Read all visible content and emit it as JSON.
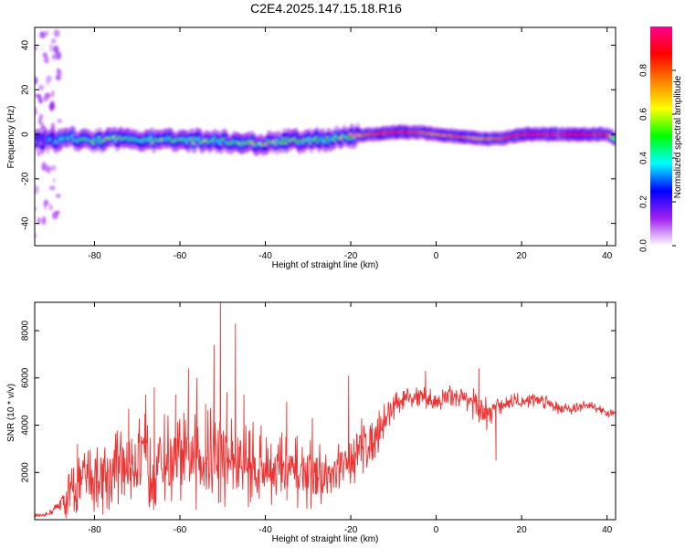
{
  "title": "C2E4.2025.147.15.18.R16",
  "chart_data": [
    {
      "type": "heatmap",
      "xlabel": "Height of straight line (km)",
      "ylabel": "Frequency (Hz)",
      "xlim": [
        -94,
        42
      ],
      "ylim": [
        -50,
        48
      ],
      "x_ticks": [
        -80,
        -60,
        -40,
        -20,
        0,
        20,
        40
      ],
      "y_ticks": [
        -40,
        -20,
        0,
        20,
        40
      ],
      "colorbar": {
        "label": "Normalized spectral amplitude",
        "range": [
          0.0,
          1.0
        ],
        "ticks": [
          0.0,
          0.2,
          0.4,
          0.6,
          0.8
        ],
        "tick_labels": [
          "0.0",
          "0.2",
          "0.4",
          "0.6",
          "0.8"
        ],
        "colormap": [
          "#ffffff",
          "#a020f0",
          "#0000ff",
          "#00ffff",
          "#00ff00",
          "#ffff00",
          "#ff8000",
          "#ff0000",
          "#ff0090"
        ]
      },
      "ridge": {
        "x": [
          -94,
          -90,
          -85,
          -80,
          -75,
          -70,
          -65,
          -60,
          -55,
          -50,
          -45,
          -40,
          -35,
          -30,
          -25,
          -20,
          -15,
          -10,
          -5,
          0,
          5,
          10,
          15,
          20,
          25,
          30,
          35,
          40,
          42
        ],
        "freq": [
          -3,
          -3,
          -2,
          -3,
          -2,
          -2,
          -3,
          -2,
          -3,
          -3,
          -4,
          -4,
          -3,
          -3,
          -2,
          -1,
          0,
          1,
          1,
          0,
          -1,
          -2,
          -2,
          0,
          0,
          0,
          0,
          0,
          -2
        ],
        "amplitude": [
          0.1,
          0.3,
          0.4,
          0.45,
          0.5,
          0.45,
          0.5,
          0.45,
          0.5,
          0.45,
          0.5,
          0.55,
          0.5,
          0.5,
          0.45,
          0.6,
          0.8,
          0.9,
          0.85,
          0.7,
          0.8,
          0.7,
          0.75,
          0.95,
          0.95,
          0.95,
          0.95,
          0.9,
          0.5
        ]
      }
    },
    {
      "type": "line",
      "xlabel": "Height of straight line (km)",
      "ylabel": "SNR (10 * v/v)",
      "xlim": [
        -94,
        42
      ],
      "ylim": [
        0,
        9200
      ],
      "x_ticks": [
        -80,
        -60,
        -40,
        -20,
        0,
        20,
        40
      ],
      "y_ticks": [
        2000,
        4000,
        6000,
        8000
      ],
      "color": "#ee3333",
      "x": [
        -94,
        -92,
        -90,
        -88,
        -86,
        -84,
        -82,
        -80,
        -78,
        -76,
        -74,
        -72,
        -70,
        -68,
        -66,
        -64,
        -62,
        -60,
        -58,
        -56,
        -54,
        -52,
        -50,
        -48,
        -46,
        -44,
        -42,
        -40,
        -38,
        -36,
        -34,
        -32,
        -30,
        -28,
        -26,
        -24,
        -22,
        -20,
        -18,
        -16,
        -14,
        -12,
        -10,
        -8,
        -6,
        -4,
        -2,
        0,
        2,
        4,
        6,
        8,
        10,
        12,
        14,
        16,
        18,
        20,
        22,
        24,
        26,
        28,
        30,
        32,
        34,
        36,
        38,
        40,
        42
      ],
      "mean": [
        200,
        150,
        350,
        700,
        1000,
        1500,
        1700,
        1800,
        1900,
        2100,
        2300,
        2400,
        2500,
        2500,
        2500,
        2500,
        2500,
        2500,
        2500,
        2600,
        2600,
        2700,
        2700,
        2600,
        2500,
        2400,
        2300,
        2200,
        2200,
        2100,
        2000,
        2000,
        2000,
        1900,
        1800,
        1900,
        2200,
        2700,
        3000,
        3300,
        3700,
        4200,
        4800,
        5000,
        5100,
        5300,
        5100,
        5000,
        5100,
        5300,
        5200,
        5100,
        4500,
        4400,
        4800,
        4900,
        5000,
        5000,
        5100,
        5100,
        5000,
        4800,
        4700,
        4700,
        4800,
        4800,
        4700,
        4500,
        4500
      ],
      "spread": [
        80,
        80,
        150,
        300,
        1200,
        1400,
        1500,
        1600,
        1700,
        1800,
        1900,
        2000,
        2100,
        2100,
        2100,
        2100,
        2100,
        2100,
        2100,
        2200,
        2200,
        2200,
        2200,
        2100,
        2000,
        1900,
        1800,
        1700,
        1700,
        1700,
        1600,
        1600,
        1600,
        1500,
        1500,
        1500,
        1500,
        1500,
        1400,
        1200,
        1100,
        900,
        600,
        500,
        500,
        500,
        500,
        500,
        500,
        500,
        500,
        600,
        900,
        800,
        450,
        400,
        400,
        400,
        350,
        350,
        350,
        300,
        300,
        250,
        250,
        250,
        200,
        150,
        150
      ],
      "spikes": [
        {
          "x": -84,
          "y": 3200
        },
        {
          "x": -72,
          "y": 4700
        },
        {
          "x": -68,
          "y": 5300
        },
        {
          "x": -66,
          "y": 5600
        },
        {
          "x": -61,
          "y": 5300
        },
        {
          "x": -58,
          "y": 6400
        },
        {
          "x": -56,
          "y": 6000
        },
        {
          "x": -54,
          "y": 4900
        },
        {
          "x": -52,
          "y": 7400
        },
        {
          "x": -50.5,
          "y": 9200
        },
        {
          "x": -49,
          "y": 5400
        },
        {
          "x": -47,
          "y": 8300
        },
        {
          "x": -45,
          "y": 5300
        },
        {
          "x": -41,
          "y": 4000
        },
        {
          "x": -35,
          "y": 5000
        },
        {
          "x": -29,
          "y": 4300
        },
        {
          "x": -20.5,
          "y": 6100
        },
        {
          "x": -15,
          "y": 4100
        },
        {
          "x": -2.5,
          "y": 6300
        },
        {
          "x": 10,
          "y": 6400
        },
        {
          "x": 14,
          "y": 2500
        }
      ]
    }
  ]
}
